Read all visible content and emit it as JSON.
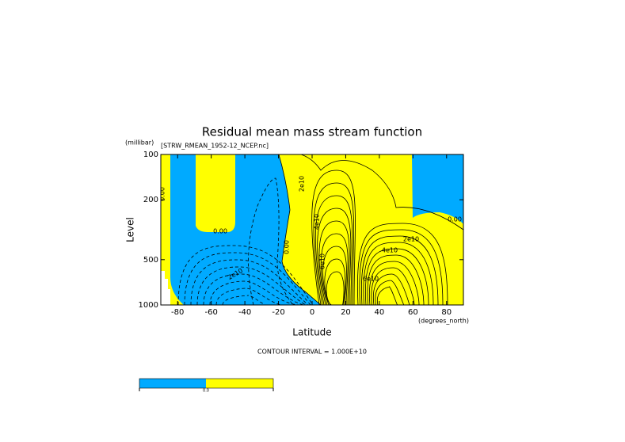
{
  "chart_data": {
    "type": "contour",
    "title": "Residual mean mass stream function",
    "subtitle": "[STRW_RMEAN_1952-12_NCEP.nc]",
    "x_label": "Latitude",
    "x_unit": "(degrees_north)",
    "y_label": "Level",
    "y_unit": "(millibar)",
    "xlim": [
      -90,
      90
    ],
    "ylim": [
      1000,
      100
    ],
    "y_log": true,
    "xticks": [
      -80,
      -60,
      -40,
      -20,
      0,
      20,
      40,
      60,
      80
    ],
    "yticks": [
      100,
      200,
      500,
      1000
    ],
    "annotation": "CONTOUR INTERVAL = 1.000E+10",
    "contour_labels": [
      "0.00",
      "0.00",
      "0.00",
      "0.00",
      "2e10",
      "4e10",
      "6e10",
      "2e10",
      "4e10",
      "6e10",
      "2e10"
    ],
    "colors": [
      "#00aaff",
      "#ffff00"
    ],
    "colorbar_labels": [
      "0.0"
    ]
  }
}
